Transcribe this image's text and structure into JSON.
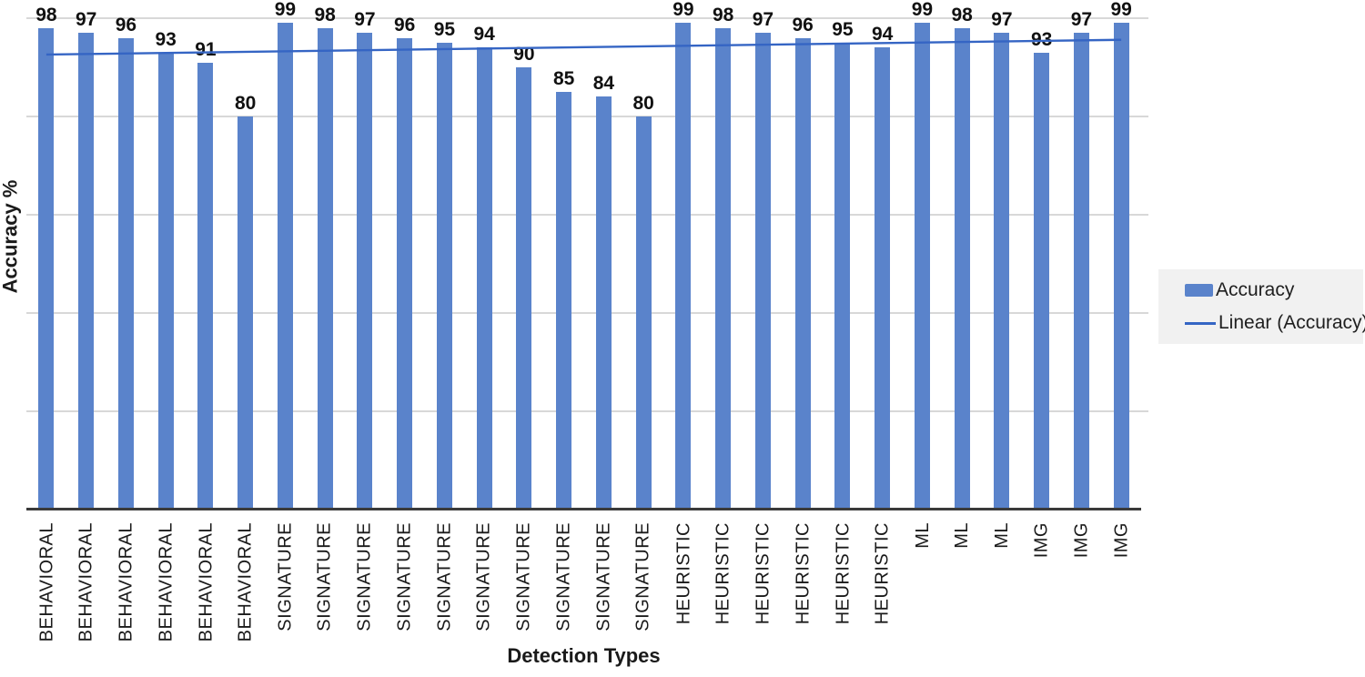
{
  "chart_data": {
    "type": "bar",
    "title": "",
    "xlabel": "Detection Types",
    "ylabel": "Accuracy %",
    "ylim": [
      0,
      100
    ],
    "gridlines": [
      20,
      40,
      60,
      80,
      100
    ],
    "grid": "on",
    "legend_position": "right",
    "categories": [
      "BEHAVIORAL",
      "BEHAVIORAL",
      "BEHAVIORAL",
      "BEHAVIORAL",
      "BEHAVIORAL",
      "BEHAVIORAL",
      "SIGNATURE",
      "SIGNATURE",
      "SIGNATURE",
      "SIGNATURE",
      "SIGNATURE",
      "SIGNATURE",
      "SIGNATURE",
      "SIGNATURE",
      "SIGNATURE",
      "SIGNATURE",
      "HEURISTIC",
      "HEURISTIC",
      "HEURISTIC",
      "HEURISTIC",
      "HEURISTIC",
      "HEURISTIC",
      "ML",
      "ML",
      "ML",
      "IMG",
      "IMG",
      "IMG"
    ],
    "series": [
      {
        "name": "Accuracy",
        "values": [
          98,
          97,
          96,
          93,
          91,
          80,
          99,
          98,
          97,
          96,
          95,
          94,
          90,
          85,
          84,
          80,
          99,
          98,
          97,
          96,
          95,
          94,
          99,
          98,
          97,
          93,
          97,
          99
        ]
      }
    ],
    "trendline": {
      "name": "Linear (Accuracy)",
      "start_value": 92.6,
      "end_value": 95.6
    }
  },
  "legend": {
    "items": [
      {
        "label": "Accuracy",
        "swatch": "bar"
      },
      {
        "label": "Linear (Accuracy)",
        "swatch": "line"
      }
    ]
  },
  "colors": {
    "bar": "#5A83CB",
    "trendline": "#3565C4",
    "gridline": "#D8D8D8",
    "axis": "#3A3A3A",
    "legend_background": "#F1F1F1",
    "text": "#1F1F1F"
  }
}
